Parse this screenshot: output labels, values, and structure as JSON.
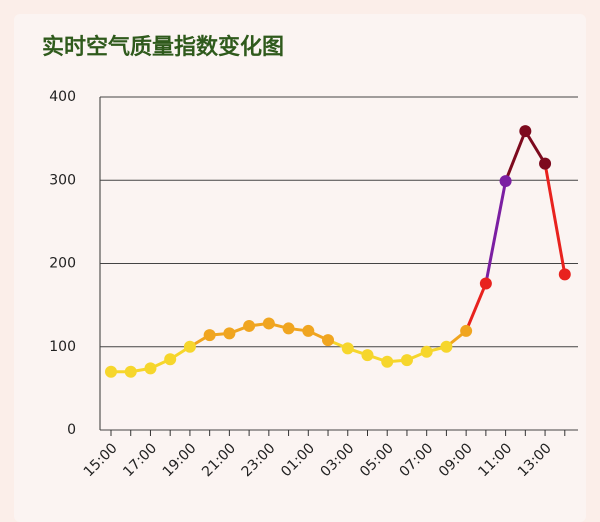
{
  "chart_data": {
    "type": "line",
    "title": "实时空气质量指数变化图",
    "categories": [
      "15:00",
      null,
      "17:00",
      null,
      "19:00",
      null,
      "21:00",
      null,
      "23:00",
      null,
      "01:00",
      null,
      "03:00",
      null,
      "05:00",
      null,
      "07:00",
      null,
      "09:00",
      null,
      "11:00",
      null,
      "13:00",
      null
    ],
    "series": [
      {
        "values": [
          70,
          70,
          74,
          85,
          100,
          114,
          116,
          125,
          128,
          122,
          119,
          108,
          98,
          90,
          82,
          84,
          94,
          100,
          119,
          176,
          299,
          359,
          320,
          187
        ],
        "point_colors": [
          "#f6d62c",
          "#f6d62c",
          "#f6d62c",
          "#f6d62c",
          "#f6d62c",
          "#f0a520",
          "#f0a520",
          "#f0a520",
          "#f0a520",
          "#f0a520",
          "#f0a520",
          "#f0a520",
          "#f6d62c",
          "#f6d62c",
          "#f6d62c",
          "#f6d62c",
          "#f6d62c",
          "#f6d62c",
          "#f0a520",
          "#e8221e",
          "#7b1fa2",
          "#7d0a1e",
          "#7d0a1e",
          "#e8221e"
        ]
      }
    ],
    "ylim": [
      0,
      400
    ],
    "yticks": [
      0,
      100,
      200,
      300,
      400
    ],
    "grid": true
  }
}
